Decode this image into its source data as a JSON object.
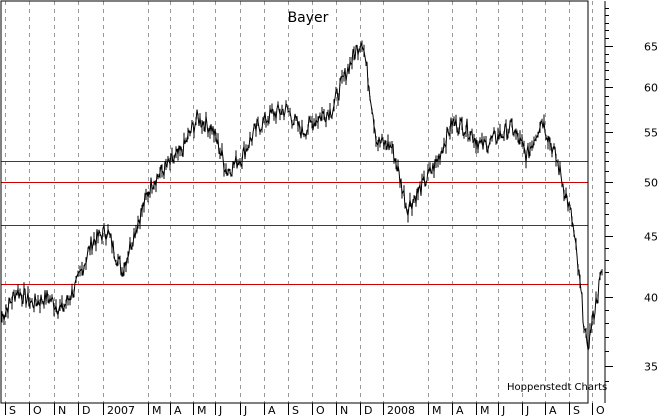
{
  "chart_data": {
    "type": "line",
    "title": "Bayer",
    "credit": "Hoppenstedt Charts",
    "x_tick_labels": [
      "S",
      "O",
      "N",
      "D",
      "2007",
      "M",
      "A",
      "M",
      "J",
      "J",
      "A",
      "S",
      "O",
      "N",
      "D",
      "2008",
      "M",
      "A",
      "M",
      "J",
      "J",
      "A",
      "S",
      "O"
    ],
    "y_axis": {
      "scale": "log",
      "ticks": [
        35,
        40,
        45,
        50,
        55,
        60,
        65
      ],
      "ylim": [
        33,
        72
      ],
      "position": "right"
    },
    "grid": {
      "vertical_dashed": true
    },
    "horizontal_reference_lines": [
      52,
      50,
      46,
      41
    ],
    "colors": {
      "price": "#000000",
      "reference": "#cc0000",
      "grid": "#999999",
      "frame": "#000000"
    },
    "series": [
      {
        "values_monthly_approx": [
          38.5,
          40.5,
          39.5,
          40.0,
          39.0,
          41.0,
          44.5,
          45.5,
          42.0,
          46.0,
          50.0,
          51.5,
          53.0,
          56.5,
          55.5,
          51.0,
          52.5,
          55.5,
          57.0,
          57.5,
          55.0,
          56.5,
          57.5,
          62.0,
          66.0,
          54.0,
          53.5,
          47.5,
          49.5,
          52.0,
          56.0,
          55.5,
          53.5,
          54.5,
          55.5,
          52.5,
          56.5,
          52.0,
          46.5,
          36.0,
          42.0
        ]
      }
    ]
  }
}
